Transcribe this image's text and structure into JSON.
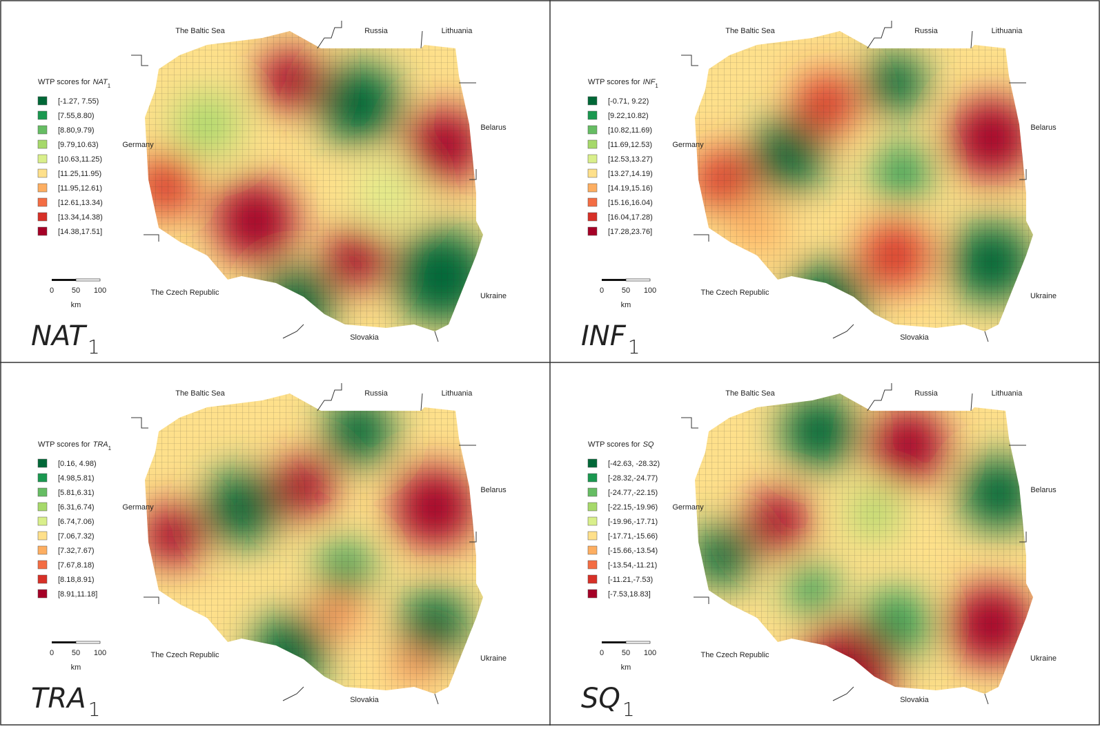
{
  "colors": [
    "#006837",
    "#1a9850",
    "#66bd63",
    "#a6d96a",
    "#d9ef8b",
    "#fee08b",
    "#fdae61",
    "#f46d43",
    "#d73027",
    "#a50026"
  ],
  "panels": [
    {
      "label": {
        "name": "NAT",
        "subscript": "1"
      },
      "legend": {
        "title": "WTP scores for",
        "variable": "NAT",
        "subscript": "1",
        "items": [
          "[-1.27, 7.55)",
          "[7.55,8.80)",
          "[8.80,9.79)",
          "[9.79,10.63)",
          "[10.63,11.25)",
          "[11.25,11.95)",
          "[11.95,12.61)",
          "[12.61,13.34)",
          "[13.34,14.38)",
          "[14.38,17.51]"
        ]
      },
      "places": {
        "baltic": "The Baltic Sea",
        "russia": "Russia",
        "lithuania": "Lithuania",
        "belarus": "Belarus",
        "germany": "Germany",
        "czech": "The Czech Republic",
        "slovakia": "Slovakia",
        "ukraine": "Ukraine"
      },
      "scale": {
        "ticks": [
          0,
          50,
          100
        ],
        "unit": "km"
      }
    },
    {
      "label": {
        "name": "INF",
        "subscript": "1"
      },
      "legend": {
        "title": "WTP scores for",
        "variable": "INF",
        "subscript": "1",
        "items": [
          "[-0.71, 9.22)",
          "[9.22,10.82)",
          "[10.82,11.69)",
          "[11.69,12.53)",
          "[12.53,13.27)",
          "[13.27,14.19)",
          "[14.19,15.16)",
          "[15.16,16.04)",
          "[16.04,17.28)",
          "[17.28,23.76]"
        ]
      },
      "places": {
        "baltic": "The Baltic Sea",
        "russia": "Russia",
        "lithuania": "Lithuania",
        "belarus": "Belarus",
        "germany": "Germany",
        "czech": "The Czech Republic",
        "slovakia": "Slovakia",
        "ukraine": "Ukraine"
      },
      "scale": {
        "ticks": [
          0,
          50,
          100
        ],
        "unit": "km"
      }
    },
    {
      "label": {
        "name": "TRA",
        "subscript": "1"
      },
      "legend": {
        "title": "WTP scores for",
        "variable": "TRA",
        "subscript": "1",
        "items": [
          "[0.16, 4.98)",
          "[4.98,5.81)",
          "[5.81,6.31)",
          "[6.31,6.74)",
          "[6.74,7.06)",
          "[7.06,7.32)",
          "[7.32,7.67)",
          "[7.67,8.18)",
          "[8.18,8.91)",
          "[8.91,11.18]"
        ]
      },
      "places": {
        "baltic": "The Baltic Sea",
        "russia": "Russia",
        "lithuania": "Lithuania",
        "belarus": "Belarus",
        "germany": "Germany",
        "czech": "The Czech Republic",
        "slovakia": "Slovakia",
        "ukraine": "Ukraine"
      },
      "scale": {
        "ticks": [
          0,
          50,
          100
        ],
        "unit": "km"
      }
    },
    {
      "label": {
        "name": "SQ",
        "subscript": "1"
      },
      "legend": {
        "title": "WTP scores for",
        "variable": "SQ",
        "items": [
          "[-42.63, -28.32)",
          "[-28.32,-24.77)",
          "[-24.77,-22.15)",
          "[-22.15,-19.96)",
          "[-19.96,-17.71)",
          "[-17.71,-15.66)",
          "[-15.66,-13.54)",
          "[-13.54,-11.21)",
          "[-11.21,-7.53)",
          "[-7.53,18.83]"
        ]
      },
      "places": {
        "baltic": "The Baltic Sea",
        "russia": "Russia",
        "lithuania": "Lithuania",
        "belarus": "Belarus",
        "germany": "Germany",
        "czech": "The Czech Republic",
        "slovakia": "Slovakia",
        "ukraine": "Ukraine"
      },
      "scale": {
        "ticks": [
          0,
          50,
          100
        ],
        "unit": "km"
      }
    }
  ]
}
